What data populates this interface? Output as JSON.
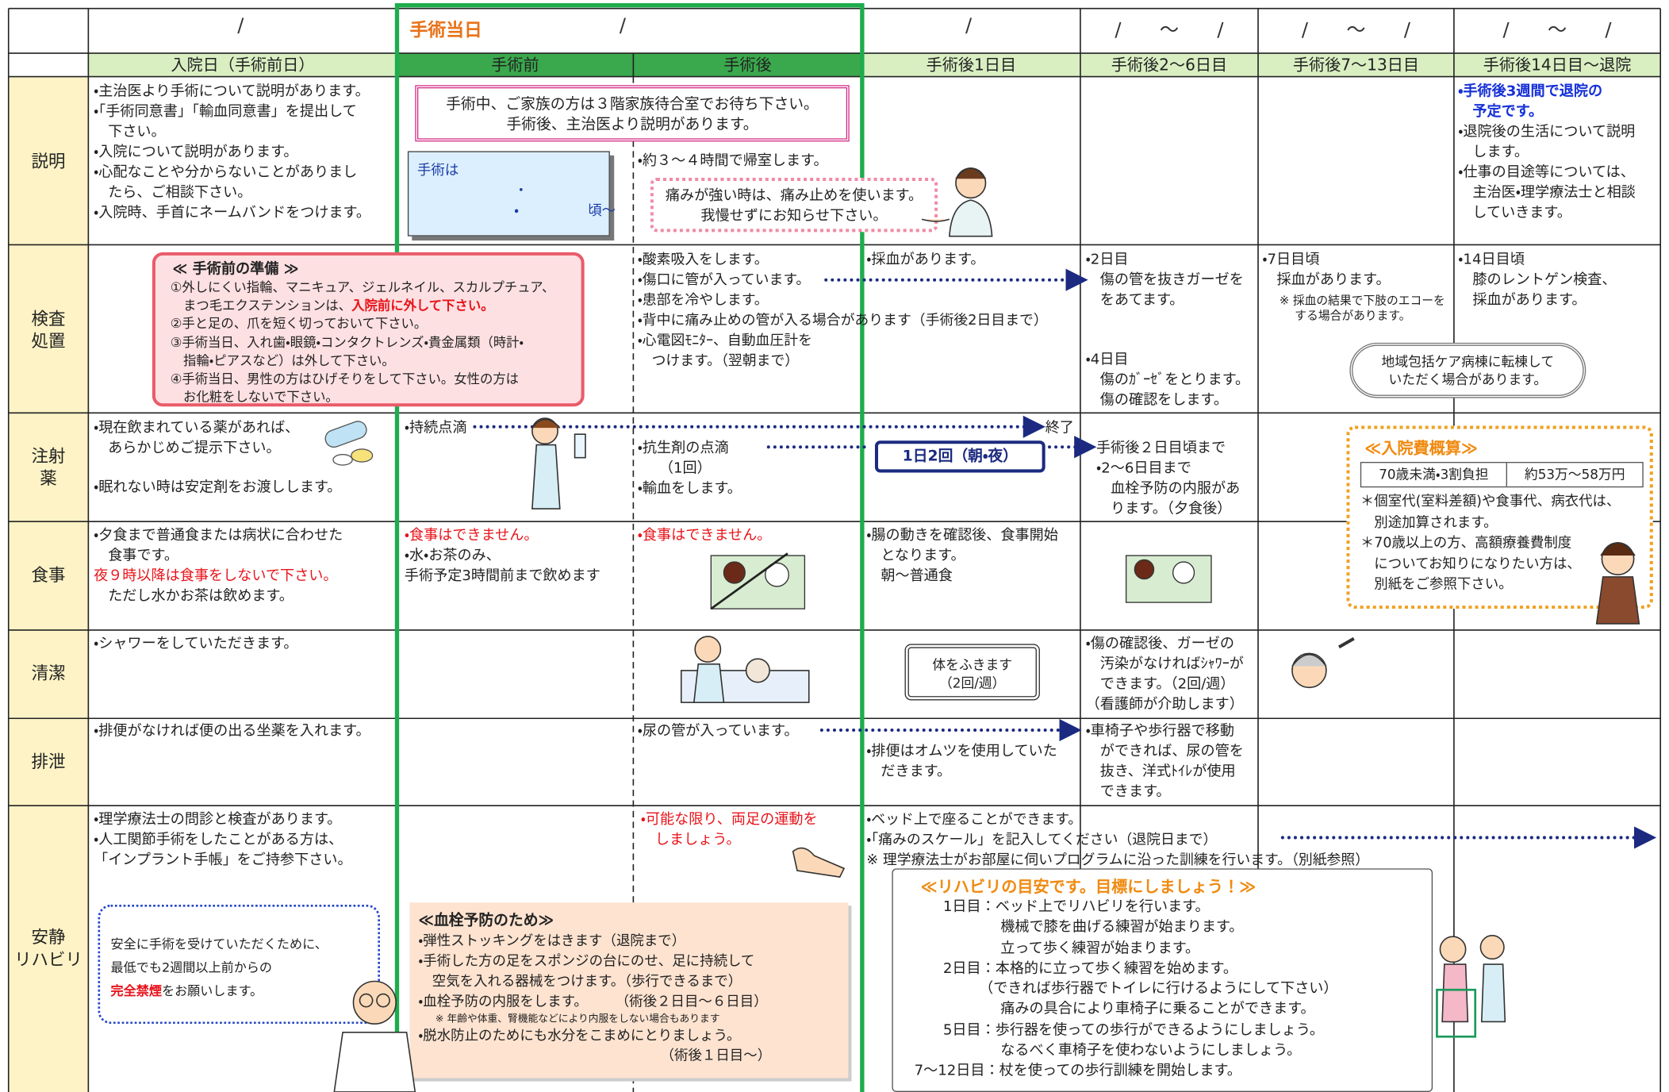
{
  "header": {
    "dates": [
      "/",
      "/",
      "/",
      "/　　～　　/",
      "/　　～　　/",
      "/　　～　　/"
    ],
    "surgery_day": "手術当日",
    "phases": [
      "入院日（手術前日）",
      "手術前",
      "手術後",
      "手術後1日目",
      "手術後2～6日目",
      "手術後7～13日目",
      "手術後14日目～退院"
    ]
  },
  "row_labels": [
    [
      "説明"
    ],
    [
      "検査",
      "処置"
    ],
    [
      "注射",
      "薬"
    ],
    [
      "食事"
    ],
    [
      "清潔"
    ],
    [
      "排泄"
    ],
    [
      "安静",
      "リハビリ"
    ]
  ],
  "explanation": {
    "admit": [
      "・主治医より手術について説明があります。",
      "・「手術同意書」「輸血同意書」を提出して",
      "　下さい。",
      "・入院について説明があります。",
      "・心配なことや分からないことがありまし",
      "　たら、ご相談下さい。",
      "・入院時、手首にネームバンドをつけます。"
    ],
    "family": [
      "手術中、ご家族の方は３階家族待合室でお待ち下さい。",
      "手術後、主治医より説明があります。"
    ],
    "time": [
      "手術は",
      "　　　　　　　・",
      "　　　　　　　・　　　　　頃～"
    ],
    "return": [
      "・約３～４時間で帰室します。"
    ],
    "pain": [
      "痛みが強い時は、痛み止めを使います。",
      "我慢せずにお知らせ下さい。"
    ],
    "discharge_notice": [
      "・手術後3週間で退院の",
      "　予定です。"
    ],
    "discharge": [
      "・退院後の生活について説明",
      "　します。",
      "・仕事の目途等については、",
      "　主治医・理学療法士と相談",
      "　していきます。"
    ]
  },
  "tests": {
    "prep_title": "≪ 手術前の準備 ≫",
    "prep": [
      "①外しにくい指輪、マニキュア、ジェルネイル、スカルプチュア、",
      [
        "　まつ毛エクステンションは、",
        "入院前に外して下さい。"
      ],
      "②手と足の、爪を短く切っておいて下さい。",
      "③手術当日、入れ歯・眼鏡・コンタクトレンズ・貴金属類（時計・",
      "　指輪・ピアスなど）は外して下さい。",
      "④手術当日、男性の方はひげそりをして下さい。女性の方は",
      "　お化粧をしないで下さい。"
    ],
    "post": [
      "・酸素吸入をします。",
      "・傷口に管が入っています。",
      "・患部を冷やします。",
      "・背中に痛み止めの管が入る場合があります（手術後2日目まで）",
      "・心電図ﾓﾆﾀｰ、自動血圧計を",
      "　つけます。（翌朝まで）"
    ],
    "day1": [
      "・採血があります。"
    ],
    "day2": [
      "・2日目",
      "　傷の管を抜きガーゼを",
      "　をあてます。"
    ],
    "day4": [
      "・4日目",
      "　傷のｶﾞｰｾﾞをとります。",
      "　傷の確認をします。"
    ],
    "day7": [
      "・7日目頃",
      "　採血があります。"
    ],
    "day7_note": [
      "※ 採血の結果で下肢のエコーを",
      "　 する場合があります。"
    ],
    "transfer": [
      "地域包括ケア病棟に転棟して",
      "いただく場合があります。"
    ],
    "day14": [
      "・14日目頃",
      "　膝のレントゲン検査、",
      "　採血があります。"
    ]
  },
  "injection": {
    "admit": [
      "・現在飲まれている薬があれば、",
      "　あらかじめご提示下さい。"
    ],
    "sleep": [
      "・眠れない時は安定剤をお渡しします。"
    ],
    "drip": "・持続点滴",
    "drip_end": "終了",
    "post": [
      "・抗生剤の点滴",
      "　　（1回）",
      "・輸血をします。"
    ],
    "twice": "1日2回（朝・夜）",
    "day2": [
      "手術後２日目頃まで",
      "・2～6日目まで",
      "　血栓予防の内服があ",
      "　ります。（夕食後）"
    ],
    "cost_title": "≪入院費概算≫",
    "cost_table": [
      "70歳未満・3割負担",
      "約53万～58万円"
    ],
    "cost_notes": [
      "＊個室代(室料差額)や食事代、病衣代は、",
      "　別途加算されます。",
      "＊70歳以上の方、高額療養費制度",
      "　についてお知りになりたい方は、",
      "　別紙をご参照下さい。"
    ]
  },
  "meal": {
    "admit": [
      "・夕食まで普通食または病状に合わせた",
      "　食事です。",
      [
        "夜９時以降は食事をしないで下さい。"
      ],
      "　ただし水かお茶は飲めます。"
    ],
    "pre": [
      [
        "・食事はできません。"
      ],
      "・水・お茶のみ、",
      "手術予定3時間前まで飲めます"
    ],
    "post": [
      "・食事はできません。"
    ],
    "day1": [
      "・腸の動きを確認後、食事開始",
      "　となります。",
      "　朝～普通食"
    ]
  },
  "clean": {
    "admit": [
      "・シャワーをしていただきます。"
    ],
    "wipe": [
      "体をふきます",
      "（2回/週）"
    ],
    "day2": [
      "・傷の確認後、ガーゼの",
      "　汚染がなければｼｬﾜｰが",
      "　できます。（2回/週）",
      "（看護師が介助します）"
    ]
  },
  "excretion": {
    "admit": [
      "・排便がなければ便の出る坐薬を入れます。"
    ],
    "post": [
      "・尿の管が入っています。"
    ],
    "day1": [
      "・排便はオムツを使用していた",
      "　だきます。"
    ],
    "day2": [
      "・車椅子や歩行器で移動",
      "　ができれば、尿の管を",
      "　抜き、洋式ﾄｲﾚが使用",
      "　できます。"
    ]
  },
  "rehab": {
    "admit": [
      "・理学療法士の問診と検査があります。",
      "・人工関節手術をしたことがある方は、",
      "「インプラント手帳」をご持参下さい。"
    ],
    "smoke": [
      "安全に手術を受けていただくために、",
      "最低でも2週間以上前からの",
      [
        "完全禁煙",
        "をお願いします。"
      ]
    ],
    "post": [
      "・可能な限り、両足の運動を",
      "　しましょう。"
    ],
    "thrombosis_title": "≪血栓予防のため≫",
    "thrombosis": [
      "・弾性ストッキングをはきます（退院まで）",
      "・手術した方の足をスポンジの台にのせ、足に持続して",
      "　空気を入れる器械をつけます。（歩行できるまで）",
      "・血栓予防の内服をします。　　　（術後２日目～６日目）"
    ],
    "thrombosis_note": "※ 年齢や体重、腎機能などにより内服をしない場合もあります",
    "thrombosis_more": [
      "・脱水防止のためにも水分をこまめにとりましょう。",
      "　　　　　　　　　　　　　　　　　　（術後１日目～）"
    ],
    "day1": [
      "・ベッド上で座ることができます。",
      "・「痛みのスケール」を記入してください（退院日まで）",
      "※ 理学療法士がお部屋に伺いプログラムに沿った訓練を行います。（別紙参照）"
    ],
    "guide_title": "≪リハビリの目安です。目標にしましょう！≫",
    "guide": [
      "　　1日目：ベッド上でリハビリを行います。",
      "　　　　　　機械で膝を曲げる練習が始まります。",
      "　　　　　　立って歩く練習が始まります。",
      "　　2日目：本格的に立って歩く練習を始めます。",
      "　　　　　（できれば歩行器でトイレに行けるようにして下さい）",
      "　　　　　　痛みの具合により車椅子に乗ることができます。",
      "　　5日目：歩行器を使っての歩行ができるようにしましょう。",
      "　　　　　　なるべく車椅子を使わないようにしましょう。",
      "7～12日目：杖を使っての歩行訓練を開始します。"
    ]
  }
}
